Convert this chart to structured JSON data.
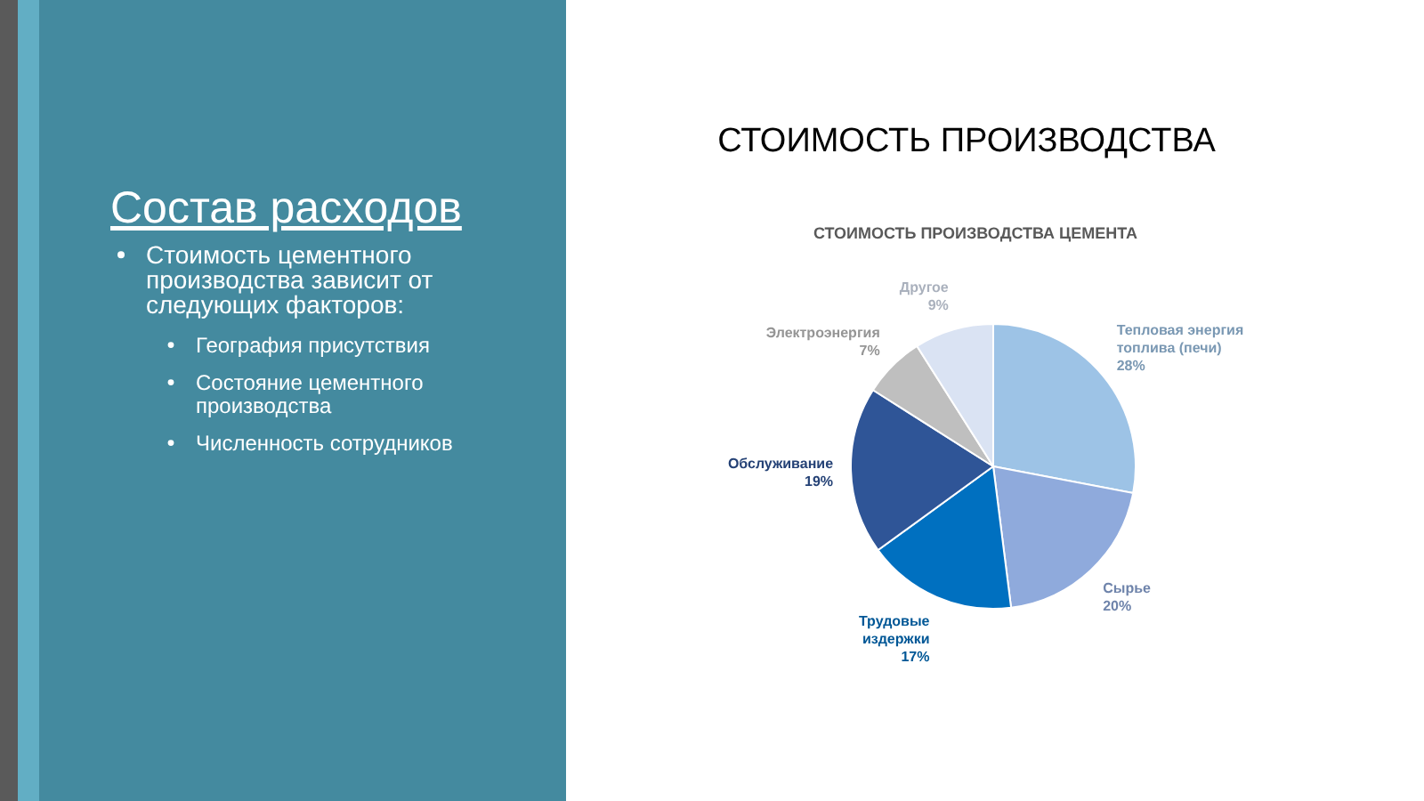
{
  "chart_data": {
    "type": "pie",
    "title": "СТОИМОСТЬ ПРОИЗВОДСТВА",
    "subtitle": "СТОИМОСТЬ ПРОИЗВОДСТВА ЦЕМЕНТА",
    "categories": [
      "Тепловая энергия топлива (печи)",
      "Сырье",
      "Трудовые издержки",
      "Обслуживание",
      "Электроэнергия",
      "Другое"
    ],
    "values": [
      28,
      20,
      17,
      19,
      7,
      9
    ],
    "colors": [
      "#9dc3e6",
      "#8faadc",
      "#0070c0",
      "#2f5597",
      "#bfbfbf",
      "#dae3f3"
    ],
    "value_labels": [
      "28%",
      "20%",
      "17%",
      "19%",
      "7%",
      "9%"
    ],
    "annotations": [
      "Состав расходов",
      "Стоимость цементного производства зависит от следующих факторов:",
      "География присутствия",
      "Состояние цементного производства",
      "Численность сотрудников"
    ]
  }
}
